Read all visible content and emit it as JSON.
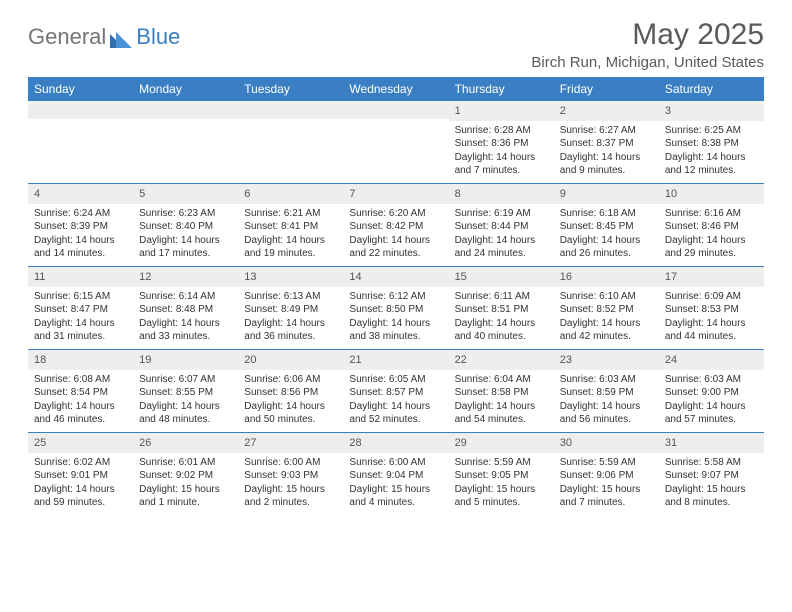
{
  "logo": {
    "text1": "General",
    "text2": "Blue"
  },
  "header": {
    "month_title": "May 2025",
    "location": "Birch Run, Michigan, United States"
  },
  "day_names": [
    "Sunday",
    "Monday",
    "Tuesday",
    "Wednesday",
    "Thursday",
    "Friday",
    "Saturday"
  ],
  "colors": {
    "header_bg": "#3a7fc4",
    "daynum_bg": "#eeeeee",
    "week_border": "#3a7fc4",
    "text": "#333333",
    "title_text": "#5a5a5a"
  },
  "weeks": [
    [
      {
        "day": "",
        "sunrise": "",
        "sunset": "",
        "daylight": ""
      },
      {
        "day": "",
        "sunrise": "",
        "sunset": "",
        "daylight": ""
      },
      {
        "day": "",
        "sunrise": "",
        "sunset": "",
        "daylight": ""
      },
      {
        "day": "",
        "sunrise": "",
        "sunset": "",
        "daylight": ""
      },
      {
        "day": "1",
        "sunrise": "Sunrise: 6:28 AM",
        "sunset": "Sunset: 8:36 PM",
        "daylight": "Daylight: 14 hours and 7 minutes."
      },
      {
        "day": "2",
        "sunrise": "Sunrise: 6:27 AM",
        "sunset": "Sunset: 8:37 PM",
        "daylight": "Daylight: 14 hours and 9 minutes."
      },
      {
        "day": "3",
        "sunrise": "Sunrise: 6:25 AM",
        "sunset": "Sunset: 8:38 PM",
        "daylight": "Daylight: 14 hours and 12 minutes."
      }
    ],
    [
      {
        "day": "4",
        "sunrise": "Sunrise: 6:24 AM",
        "sunset": "Sunset: 8:39 PM",
        "daylight": "Daylight: 14 hours and 14 minutes."
      },
      {
        "day": "5",
        "sunrise": "Sunrise: 6:23 AM",
        "sunset": "Sunset: 8:40 PM",
        "daylight": "Daylight: 14 hours and 17 minutes."
      },
      {
        "day": "6",
        "sunrise": "Sunrise: 6:21 AM",
        "sunset": "Sunset: 8:41 PM",
        "daylight": "Daylight: 14 hours and 19 minutes."
      },
      {
        "day": "7",
        "sunrise": "Sunrise: 6:20 AM",
        "sunset": "Sunset: 8:42 PM",
        "daylight": "Daylight: 14 hours and 22 minutes."
      },
      {
        "day": "8",
        "sunrise": "Sunrise: 6:19 AM",
        "sunset": "Sunset: 8:44 PM",
        "daylight": "Daylight: 14 hours and 24 minutes."
      },
      {
        "day": "9",
        "sunrise": "Sunrise: 6:18 AM",
        "sunset": "Sunset: 8:45 PM",
        "daylight": "Daylight: 14 hours and 26 minutes."
      },
      {
        "day": "10",
        "sunrise": "Sunrise: 6:16 AM",
        "sunset": "Sunset: 8:46 PM",
        "daylight": "Daylight: 14 hours and 29 minutes."
      }
    ],
    [
      {
        "day": "11",
        "sunrise": "Sunrise: 6:15 AM",
        "sunset": "Sunset: 8:47 PM",
        "daylight": "Daylight: 14 hours and 31 minutes."
      },
      {
        "day": "12",
        "sunrise": "Sunrise: 6:14 AM",
        "sunset": "Sunset: 8:48 PM",
        "daylight": "Daylight: 14 hours and 33 minutes."
      },
      {
        "day": "13",
        "sunrise": "Sunrise: 6:13 AM",
        "sunset": "Sunset: 8:49 PM",
        "daylight": "Daylight: 14 hours and 36 minutes."
      },
      {
        "day": "14",
        "sunrise": "Sunrise: 6:12 AM",
        "sunset": "Sunset: 8:50 PM",
        "daylight": "Daylight: 14 hours and 38 minutes."
      },
      {
        "day": "15",
        "sunrise": "Sunrise: 6:11 AM",
        "sunset": "Sunset: 8:51 PM",
        "daylight": "Daylight: 14 hours and 40 minutes."
      },
      {
        "day": "16",
        "sunrise": "Sunrise: 6:10 AM",
        "sunset": "Sunset: 8:52 PM",
        "daylight": "Daylight: 14 hours and 42 minutes."
      },
      {
        "day": "17",
        "sunrise": "Sunrise: 6:09 AM",
        "sunset": "Sunset: 8:53 PM",
        "daylight": "Daylight: 14 hours and 44 minutes."
      }
    ],
    [
      {
        "day": "18",
        "sunrise": "Sunrise: 6:08 AM",
        "sunset": "Sunset: 8:54 PM",
        "daylight": "Daylight: 14 hours and 46 minutes."
      },
      {
        "day": "19",
        "sunrise": "Sunrise: 6:07 AM",
        "sunset": "Sunset: 8:55 PM",
        "daylight": "Daylight: 14 hours and 48 minutes."
      },
      {
        "day": "20",
        "sunrise": "Sunrise: 6:06 AM",
        "sunset": "Sunset: 8:56 PM",
        "daylight": "Daylight: 14 hours and 50 minutes."
      },
      {
        "day": "21",
        "sunrise": "Sunrise: 6:05 AM",
        "sunset": "Sunset: 8:57 PM",
        "daylight": "Daylight: 14 hours and 52 minutes."
      },
      {
        "day": "22",
        "sunrise": "Sunrise: 6:04 AM",
        "sunset": "Sunset: 8:58 PM",
        "daylight": "Daylight: 14 hours and 54 minutes."
      },
      {
        "day": "23",
        "sunrise": "Sunrise: 6:03 AM",
        "sunset": "Sunset: 8:59 PM",
        "daylight": "Daylight: 14 hours and 56 minutes."
      },
      {
        "day": "24",
        "sunrise": "Sunrise: 6:03 AM",
        "sunset": "Sunset: 9:00 PM",
        "daylight": "Daylight: 14 hours and 57 minutes."
      }
    ],
    [
      {
        "day": "25",
        "sunrise": "Sunrise: 6:02 AM",
        "sunset": "Sunset: 9:01 PM",
        "daylight": "Daylight: 14 hours and 59 minutes."
      },
      {
        "day": "26",
        "sunrise": "Sunrise: 6:01 AM",
        "sunset": "Sunset: 9:02 PM",
        "daylight": "Daylight: 15 hours and 1 minute."
      },
      {
        "day": "27",
        "sunrise": "Sunrise: 6:00 AM",
        "sunset": "Sunset: 9:03 PM",
        "daylight": "Daylight: 15 hours and 2 minutes."
      },
      {
        "day": "28",
        "sunrise": "Sunrise: 6:00 AM",
        "sunset": "Sunset: 9:04 PM",
        "daylight": "Daylight: 15 hours and 4 minutes."
      },
      {
        "day": "29",
        "sunrise": "Sunrise: 5:59 AM",
        "sunset": "Sunset: 9:05 PM",
        "daylight": "Daylight: 15 hours and 5 minutes."
      },
      {
        "day": "30",
        "sunrise": "Sunrise: 5:59 AM",
        "sunset": "Sunset: 9:06 PM",
        "daylight": "Daylight: 15 hours and 7 minutes."
      },
      {
        "day": "31",
        "sunrise": "Sunrise: 5:58 AM",
        "sunset": "Sunset: 9:07 PM",
        "daylight": "Daylight: 15 hours and 8 minutes."
      }
    ]
  ]
}
